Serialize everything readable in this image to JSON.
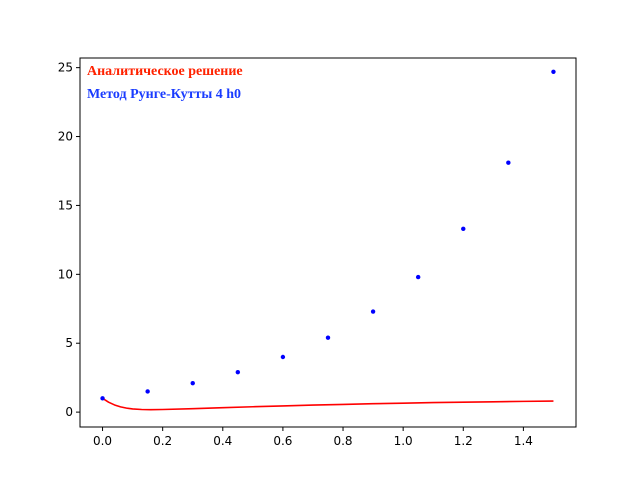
{
  "chart_data": {
    "type": "scatter",
    "title": "",
    "xlabel": "",
    "ylabel": "",
    "xlim": [
      -0.075,
      1.575
    ],
    "ylim": [
      -1.08,
      25.7
    ],
    "grid": false,
    "x_ticks": [
      0.0,
      0.2,
      0.4,
      0.6,
      0.8,
      1.0,
      1.2,
      1.4
    ],
    "x_tick_labels": [
      "0.0",
      "0.2",
      "0.4",
      "0.6",
      "0.8",
      "1.0",
      "1.2",
      "1.4"
    ],
    "y_ticks": [
      0,
      5,
      10,
      15,
      20,
      25
    ],
    "y_tick_labels": [
      "0",
      "5",
      "10",
      "15",
      "20",
      "25"
    ],
    "legend_placement": "top-left",
    "legend": [
      {
        "label": "Аналитическое решение",
        "color": "#ff2200"
      },
      {
        "label": "Метод Рунге-Кутты 4 h0",
        "color": "#1a3cff"
      }
    ],
    "series": [
      {
        "name": "Аналитическое решение",
        "kind": "line",
        "color": "#ff0000",
        "x": [
          0.0,
          0.02,
          0.04,
          0.06,
          0.08,
          0.1,
          0.13,
          0.16,
          0.2,
          0.3,
          0.4,
          0.5,
          0.6,
          0.7,
          0.8,
          0.9,
          1.0,
          1.1,
          1.2,
          1.3,
          1.4,
          1.5
        ],
        "y": [
          1.0,
          0.72,
          0.52,
          0.38,
          0.29,
          0.23,
          0.19,
          0.18,
          0.19,
          0.25,
          0.32,
          0.39,
          0.45,
          0.51,
          0.56,
          0.61,
          0.65,
          0.69,
          0.72,
          0.75,
          0.78,
          0.8
        ]
      },
      {
        "name": "Метод Рунге-Кутты 4 h0",
        "kind": "scatter",
        "color": "#0000ff",
        "x": [
          0.0,
          0.15,
          0.3,
          0.45,
          0.6,
          0.75,
          0.9,
          1.05,
          1.2,
          1.35,
          1.5
        ],
        "y": [
          1.0,
          1.5,
          2.1,
          2.9,
          4.0,
          5.4,
          7.3,
          9.8,
          13.3,
          18.1,
          24.7
        ]
      }
    ]
  }
}
